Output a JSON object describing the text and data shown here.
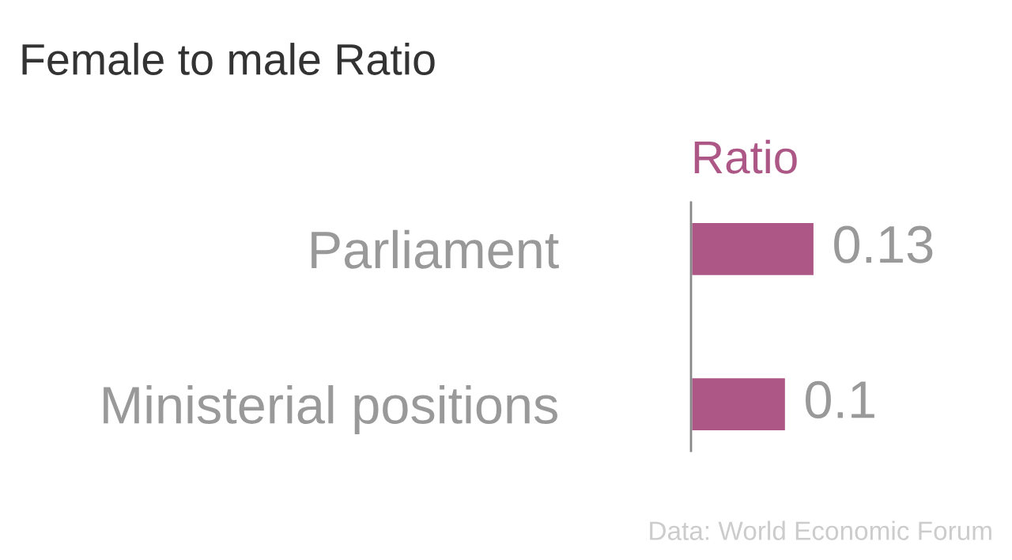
{
  "chart_data": {
    "type": "bar",
    "orientation": "horizontal",
    "title": "Female to male Ratio",
    "categories": [
      "Parliament",
      "Ministerial positions"
    ],
    "series": [
      {
        "name": "Ratio",
        "color": "#ad5787",
        "values": [
          0.13,
          0.1
        ]
      }
    ],
    "data_labels": true,
    "annotations": [
      "Data: World Economic Forum"
    ]
  }
}
